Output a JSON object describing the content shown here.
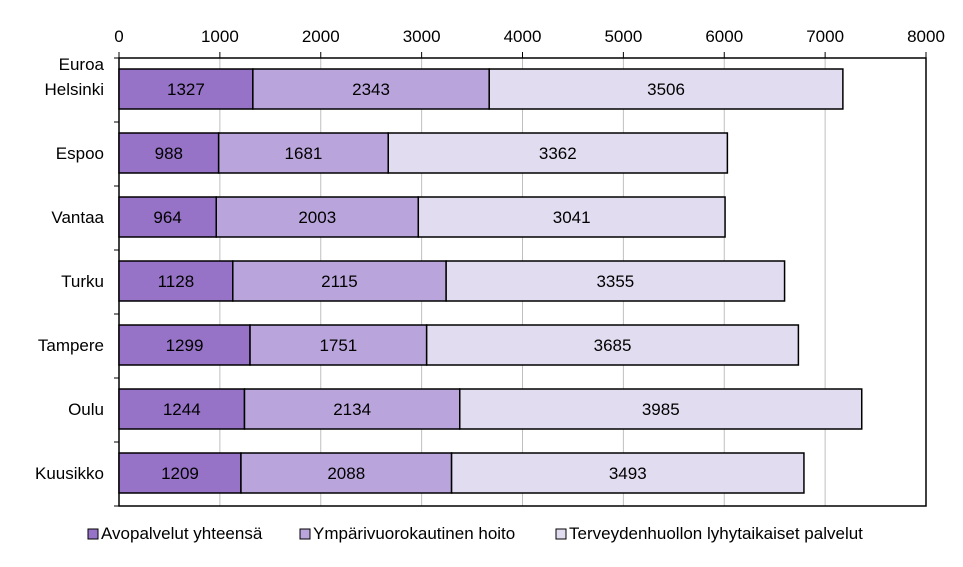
{
  "chart_data": {
    "type": "bar",
    "orientation": "horizontal",
    "stacked": true,
    "unit": "Euroa",
    "categories": [
      "Helsinki",
      "Espoo",
      "Vantaa",
      "Turku",
      "Tampere",
      "Oulu",
      "Kuusikko"
    ],
    "series": [
      {
        "name": "Avopalvelut yhteensä",
        "color": "#9673c6",
        "values": [
          1327,
          988,
          964,
          1128,
          1299,
          1244,
          1209
        ]
      },
      {
        "name": "Ympärivuorokautinen hoito",
        "color": "#b9a5dc",
        "values": [
          2343,
          1681,
          2003,
          2115,
          1751,
          2134,
          2088
        ]
      },
      {
        "name": "Terveydenhuollon lyhytaikaiset palvelut",
        "color": "#e2dcf0",
        "values": [
          3506,
          3362,
          3041,
          3355,
          3685,
          3985,
          3493
        ]
      }
    ],
    "xlim": [
      0,
      8000
    ],
    "xticks": [
      0,
      1000,
      2000,
      3000,
      4000,
      5000,
      6000,
      7000,
      8000
    ],
    "xaxis_position": "top",
    "grid": true,
    "legend_position": "bottom",
    "data_labels": true
  }
}
